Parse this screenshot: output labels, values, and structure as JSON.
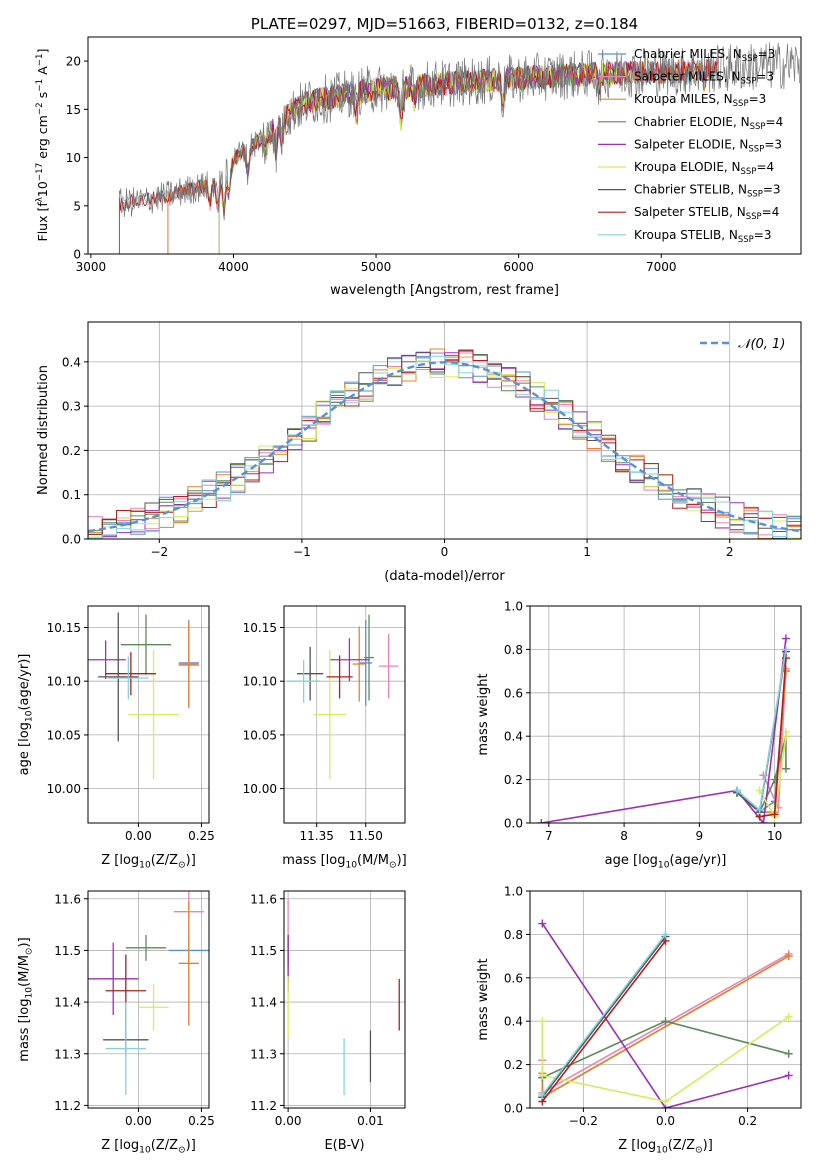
{
  "colors": {
    "chabrier_miles": "#5b8fd6",
    "salpeter_miles": "#e885b5",
    "kroupa_miles": "#e8832a",
    "chabrier_elodie": "#5d8a5c",
    "salpeter_elodie": "#9b30b8",
    "kroupa_elodie": "#d6ec5a",
    "chabrier_stelib": "#555555",
    "salpeter_stelib": "#b51c1c",
    "kroupa_stelib": "#84d2de",
    "grid": "#b0b0b0"
  },
  "chart_data": [
    {
      "panel": "spectrum",
      "type": "line",
      "title": "PLATE=0297, MJD=51663, FIBERID=0132, z=0.184",
      "xlabel": "wavelength [Angstrom, rest frame]",
      "ylabel_parts": [
        "Flux [f",
        "λ",
        "10",
        "−17",
        " erg cm",
        "−2",
        " s",
        "−1",
        " A",
        "−1",
        "]"
      ],
      "xlim": [
        2980,
        7980
      ],
      "ylim": [
        0,
        22.5
      ],
      "xticks": [
        3000,
        4000,
        5000,
        6000,
        7000
      ],
      "yticks": [
        0,
        5,
        10,
        15,
        20
      ],
      "grid": false,
      "legend_position": "right",
      "legend": [
        {
          "key": "chabrier_miles",
          "base": "Chabrier MILES, N",
          "sub": "SSP",
          "tail": "=3"
        },
        {
          "key": "salpeter_miles",
          "base": "Salpeter MILES, N",
          "sub": "SSP",
          "tail": "=3"
        },
        {
          "key": "kroupa_miles",
          "base": "Kroupa MILES, N",
          "sub": "SSP",
          "tail": "=3"
        },
        {
          "key": "chabrier_elodie",
          "base": "Chabrier ELODIE, N",
          "sub": "SSP",
          "tail": "=4"
        },
        {
          "key": "salpeter_elodie",
          "base": "Salpeter ELODIE, N",
          "sub": "SSP",
          "tail": "=3"
        },
        {
          "key": "kroupa_elodie",
          "base": "Kroupa ELODIE, N",
          "sub": "SSP",
          "tail": "=4"
        },
        {
          "key": "chabrier_stelib",
          "base": "Chabrier STELIB, N",
          "sub": "SSP",
          "tail": "=3"
        },
        {
          "key": "salpeter_stelib",
          "base": "Salpeter STELIB, N",
          "sub": "SSP",
          "tail": "=4"
        },
        {
          "key": "kroupa_stelib",
          "base": "Kroupa STELIB, N",
          "sub": "SSP",
          "tail": "=3"
        }
      ],
      "continuum": {
        "x": [
          3200,
          3300,
          3400,
          3500,
          3600,
          3700,
          3800,
          3900,
          4000,
          4100,
          4200,
          4300,
          4400,
          4500,
          4600,
          4700,
          4800,
          4900,
          5000,
          5200,
          5400,
          5600,
          5800,
          6000,
          6200,
          6400,
          6600,
          6800,
          7000,
          7200,
          7400,
          7600,
          7800,
          7970
        ],
        "y": [
          5.2,
          5.4,
          5.6,
          5.9,
          6.3,
          6.7,
          7.0,
          7.6,
          9.8,
          11.0,
          12.0,
          13.2,
          14.7,
          15.6,
          16.0,
          16.2,
          16.6,
          16.9,
          17.1,
          17.3,
          17.6,
          17.8,
          18.0,
          18.2,
          18.4,
          18.6,
          18.7,
          18.8,
          18.8,
          19.0,
          19.2,
          19.4,
          19.5,
          19.7
        ]
      },
      "data_range": [
        3200,
        7970
      ],
      "model_ranges": {
        "miles": [
          3540,
          7400
        ],
        "elodie": [
          3900,
          6800
        ],
        "stelib": [
          3200,
          7400
        ]
      }
    },
    {
      "panel": "residuals",
      "type": "histogram",
      "xlabel": "(data-model)/error",
      "ylabel": "Normed distribution",
      "xlim": [
        -2.5,
        2.5
      ],
      "ylim": [
        0,
        0.49
      ],
      "xticks": [
        -2,
        -1,
        0,
        1,
        2
      ],
      "yticks": [
        0.0,
        0.1,
        0.2,
        0.3,
        0.4
      ],
      "grid": true,
      "legend_position": "top-right",
      "legend": [
        {
          "key": "normal",
          "label": "𝒩(0, 1)"
        }
      ],
      "bin_width": 0.1,
      "bin_start": -2.5
    },
    {
      "panel": "age-vs-Z",
      "type": "errorbar",
      "xlabel_parts": [
        "Z [log",
        "10",
        "(Z/Z",
        "⊙",
        ")]"
      ],
      "ylabel_parts": [
        "age  [log",
        "10",
        "(age/yr)]"
      ],
      "xlim": [
        -0.2,
        0.28
      ],
      "ylim": [
        9.968,
        10.17
      ],
      "xticks": [
        0.0,
        0.25
      ],
      "yticks": [
        10.0,
        10.05,
        10.1,
        10.15
      ],
      "grid": true,
      "points": [
        {
          "key": "chabrier_miles",
          "x": 0.2,
          "xerr": 0.04,
          "y": 10.117,
          "yerr": 0.04
        },
        {
          "key": "salpeter_miles",
          "x": 0.2,
          "xerr": 0.04,
          "y": 10.116,
          "yerr": 0.04
        },
        {
          "key": "kroupa_miles",
          "x": 0.2,
          "xerr": 0.04,
          "y": 10.115,
          "yerr": 0.04
        },
        {
          "key": "chabrier_elodie",
          "x": 0.03,
          "xerr": 0.1,
          "y": 10.134,
          "yerr": 0.028
        },
        {
          "key": "salpeter_elodie",
          "x": -0.13,
          "xerr": 0.08,
          "y": 10.12,
          "yerr": 0.018
        },
        {
          "key": "kroupa_elodie",
          "x": 0.06,
          "xerr": 0.1,
          "y": 10.069,
          "yerr": 0.06
        },
        {
          "key": "chabrier_stelib",
          "x": -0.08,
          "xerr": 0.08,
          "y": 10.104,
          "yerr": 0.06
        },
        {
          "key": "salpeter_stelib",
          "x": -0.03,
          "xerr": 0.1,
          "y": 10.107,
          "yerr": 0.02
        },
        {
          "key": "kroupa_stelib",
          "x": -0.04,
          "xerr": 0.08,
          "y": 10.103,
          "yerr": 0.02
        }
      ]
    },
    {
      "panel": "age-vs-mass",
      "type": "errorbar",
      "xlabel_parts": [
        "mass [log",
        "10",
        "(M/M",
        "⊙",
        ")]"
      ],
      "ylabel_parts": [],
      "xlim": [
        11.25,
        11.62
      ],
      "ylim": [
        9.968,
        10.17
      ],
      "xticks": [
        11.35,
        11.5
      ],
      "xticklabels": [
        "11.35",
        "11.50"
      ],
      "yticks": [
        10.0,
        10.05,
        10.1,
        10.15
      ],
      "grid": true,
      "points": [
        {
          "key": "chabrier_miles",
          "x": 11.5,
          "xerr": 0.02,
          "y": 10.117,
          "yerr": 0.04
        },
        {
          "key": "salpeter_miles",
          "x": 11.57,
          "xerr": 0.03,
          "y": 10.114,
          "yerr": 0.03
        },
        {
          "key": "kroupa_miles",
          "x": 11.48,
          "xerr": 0.02,
          "y": 10.116,
          "yerr": 0.035
        },
        {
          "key": "chabrier_elodie",
          "x": 11.51,
          "xerr": 0.015,
          "y": 10.122,
          "yerr": 0.04
        },
        {
          "key": "salpeter_elodie",
          "x": 11.45,
          "xerr": 0.06,
          "y": 10.12,
          "yerr": 0.02
        },
        {
          "key": "kroupa_elodie",
          "x": 11.39,
          "xerr": 0.05,
          "y": 10.069,
          "yerr": 0.06
        },
        {
          "key": "chabrier_stelib",
          "x": 11.33,
          "xerr": 0.04,
          "y": 10.107,
          "yerr": 0.025
        },
        {
          "key": "salpeter_stelib",
          "x": 11.42,
          "xerr": 0.04,
          "y": 10.104,
          "yerr": 0.02
        },
        {
          "key": "kroupa_stelib",
          "x": 11.31,
          "xerr": 0.05,
          "y": 10.1,
          "yerr": 0.02
        }
      ]
    },
    {
      "panel": "mass-weight-vs-age",
      "type": "line",
      "xlabel_parts": [
        "age  [log",
        "10",
        "(age/yr)]"
      ],
      "ylabel": "mass weight",
      "xlim": [
        6.75,
        10.35
      ],
      "ylim": [
        0,
        1.0
      ],
      "xticks": [
        7,
        8,
        9,
        10
      ],
      "yticks": [
        0.0,
        0.2,
        0.4,
        0.6,
        0.8,
        1.0
      ],
      "grid": true,
      "series": [
        {
          "key": "chabrier_miles",
          "x": [
            9.5,
            9.8,
            10.0,
            10.15
          ],
          "y": [
            0.14,
            0.05,
            0.1,
            0.7
          ]
        },
        {
          "key": "salpeter_miles",
          "x": [
            9.85,
            10.05,
            10.15
          ],
          "y": [
            0.22,
            0.07,
            0.71
          ]
        },
        {
          "key": "kroupa_miles",
          "x": [
            9.8,
            10.0,
            10.15
          ],
          "y": [
            0.05,
            0.05,
            0.7
          ]
        },
        {
          "key": "chabrier_elodie",
          "x": [
            9.5,
            9.8,
            10.0,
            10.15,
            10.15
          ],
          "y": [
            0.14,
            0.05,
            0.2,
            0.4,
            0.25
          ]
        },
        {
          "key": "salpeter_elodie",
          "x": [
            6.9,
            9.5,
            9.85,
            10.15
          ],
          "y": [
            0.0,
            0.15,
            0.0,
            0.85
          ]
        },
        {
          "key": "kroupa_elodie",
          "x": [
            9.8,
            10.0,
            10.15,
            10.15
          ],
          "y": [
            0.15,
            0.03,
            0.4,
            0.42
          ]
        },
        {
          "key": "chabrier_stelib",
          "x": [
            9.5,
            9.8,
            10.15
          ],
          "y": [
            0.14,
            0.05,
            0.79
          ]
        },
        {
          "key": "salpeter_stelib",
          "x": [
            9.8,
            10.0,
            10.15
          ],
          "y": [
            0.03,
            0.04,
            0.76
          ]
        },
        {
          "key": "kroupa_stelib",
          "x": [
            9.5,
            9.8,
            10.15
          ],
          "y": [
            0.15,
            0.06,
            0.8
          ]
        }
      ]
    },
    {
      "panel": "mass-vs-Z",
      "type": "errorbar",
      "xlabel_parts": [
        "Z [log",
        "10",
        "(Z/Z",
        "⊙",
        ")]"
      ],
      "ylabel_parts": [
        "mass [log",
        "10",
        "(M/M",
        "⊙",
        ")]"
      ],
      "xlim": [
        -0.2,
        0.28
      ],
      "ylim": [
        11.195,
        11.615
      ],
      "xticks": [
        0.0,
        0.25
      ],
      "yticks": [
        11.2,
        11.3,
        11.4,
        11.5,
        11.6
      ],
      "grid": true,
      "points": [
        {
          "key": "chabrier_miles",
          "x": 0.2,
          "xerr": 0.08,
          "y": 11.5,
          "yerr": 0.03
        },
        {
          "key": "salpeter_miles",
          "x": 0.2,
          "xerr": 0.06,
          "y": 11.575,
          "yerr": 0.22
        },
        {
          "key": "kroupa_miles",
          "x": 0.2,
          "xerr": 0.04,
          "y": 11.475,
          "yerr": 0.12
        },
        {
          "key": "chabrier_elodie",
          "x": 0.03,
          "xerr": 0.08,
          "y": 11.505,
          "yerr": 0.025
        },
        {
          "key": "salpeter_elodie",
          "x": -0.1,
          "xerr": 0.1,
          "y": 11.445,
          "yerr": 0.07
        },
        {
          "key": "kroupa_elodie",
          "x": 0.06,
          "xerr": 0.06,
          "y": 11.39,
          "yerr": 0.045
        },
        {
          "key": "chabrier_stelib",
          "x": -0.05,
          "xerr": 0.09,
          "y": 11.327,
          "yerr": 0.025
        },
        {
          "key": "salpeter_stelib",
          "x": -0.05,
          "xerr": 0.08,
          "y": 11.422,
          "yerr": 0.07
        },
        {
          "key": "kroupa_stelib",
          "x": -0.05,
          "xerr": 0.08,
          "y": 11.31,
          "yerr": 0.09
        }
      ]
    },
    {
      "panel": "mass-vs-EBV",
      "type": "errorbar",
      "xlabel": "E(B-V)",
      "ylabel_parts": [],
      "xlim": [
        -0.0005,
        0.0142
      ],
      "ylim": [
        11.195,
        11.615
      ],
      "xticks": [
        0.0,
        0.01
      ],
      "xticklabels": [
        "0.00",
        "0.01"
      ],
      "yticks": [
        11.2,
        11.3,
        11.4,
        11.5,
        11.6
      ],
      "grid": true,
      "points": [
        {
          "key": "chabrier_miles",
          "x": 0.0,
          "y": 11.5,
          "yerr": 0.03
        },
        {
          "key": "salpeter_miles",
          "x": 0.0,
          "y": 11.55,
          "yerr": 0.05
        },
        {
          "key": "kroupa_miles",
          "x": 0.0,
          "y": 11.48,
          "yerr": 0.04
        },
        {
          "key": "chabrier_elodie",
          "x": 0.0,
          "y": 11.5,
          "yerr": 0.03
        },
        {
          "key": "salpeter_elodie",
          "x": 0.0,
          "y": 11.475,
          "yerr": 0.055
        },
        {
          "key": "kroupa_elodie",
          "x": 0.0,
          "y": 11.39,
          "yerr": 0.06
        },
        {
          "key": "chabrier_stelib",
          "x": 0.01,
          "y": 11.295,
          "yerr": 0.05
        },
        {
          "key": "salpeter_stelib",
          "x": 0.0135,
          "y": 11.395,
          "yerr": 0.05
        },
        {
          "key": "kroupa_stelib",
          "x": 0.0068,
          "y": 11.275,
          "yerr": 0.055
        }
      ]
    },
    {
      "panel": "mass-weight-vs-Z",
      "type": "line",
      "xlabel_parts": [
        "Z [log",
        "10",
        "(Z/Z",
        "⊙",
        ")]"
      ],
      "ylabel": "mass weight",
      "xlim": [
        -0.33,
        0.33
      ],
      "ylim": [
        0,
        1.0
      ],
      "xticks": [
        -0.2,
        0.0,
        0.2
      ],
      "xticklabels": [
        "−0.2",
        "0.0",
        "0.2"
      ],
      "yticks": [
        0.0,
        0.2,
        0.4,
        0.6,
        0.8,
        1.0
      ],
      "grid": true,
      "series": [
        {
          "key": "chabrier_miles",
          "x": [
            -0.3,
            -0.3,
            0.3
          ],
          "y": [
            0.14,
            0.05,
            0.7
          ]
        },
        {
          "key": "salpeter_miles",
          "x": [
            -0.3,
            -0.3,
            0.3
          ],
          "y": [
            0.22,
            0.07,
            0.71
          ]
        },
        {
          "key": "kroupa_miles",
          "x": [
            -0.3,
            -0.3,
            0.3
          ],
          "y": [
            0.16,
            0.05,
            0.7
          ]
        },
        {
          "key": "chabrier_elodie",
          "x": [
            -0.3,
            0.0,
            0.3
          ],
          "y": [
            0.14,
            0.4,
            0.25
          ]
        },
        {
          "key": "salpeter_elodie",
          "x": [
            -0.3,
            0.0,
            0.3
          ],
          "y": [
            0.85,
            0.0,
            0.15
          ]
        },
        {
          "key": "kroupa_elodie",
          "x": [
            -0.3,
            -0.3,
            0.0,
            0.3
          ],
          "y": [
            0.4,
            0.15,
            0.03,
            0.42
          ]
        },
        {
          "key": "chabrier_stelib",
          "x": [
            -0.3,
            0.0
          ],
          "y": [
            0.05,
            0.79
          ]
        },
        {
          "key": "salpeter_stelib",
          "x": [
            -0.3,
            0.0
          ],
          "y": [
            0.03,
            0.77
          ]
        },
        {
          "key": "kroupa_stelib",
          "x": [
            -0.3,
            0.0
          ],
          "y": [
            0.06,
            0.8
          ]
        }
      ]
    }
  ]
}
